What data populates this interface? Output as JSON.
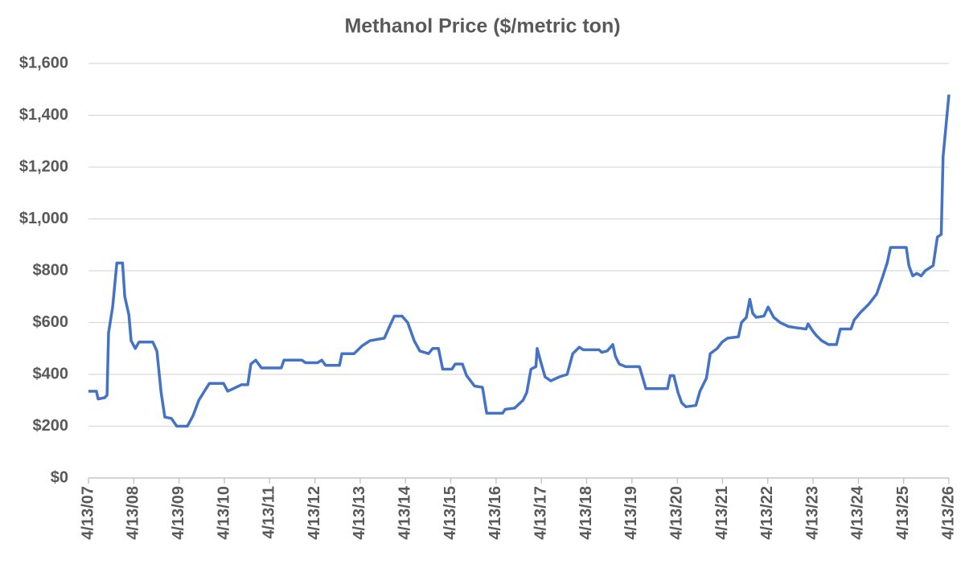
{
  "chart_data": {
    "type": "line",
    "title": "Methanol Price ($/metric ton)",
    "x": [
      "2007-04-13",
      "2007-06-16",
      "2007-06-30",
      "2007-08-22",
      "2007-09-10",
      "2007-09-22",
      "2007-10-25",
      "2007-11-28",
      "2008-01-13",
      "2008-01-31",
      "2008-03-04",
      "2008-03-22",
      "2008-04-25",
      "2008-05-25",
      "2008-09-13",
      "2008-10-16",
      "2008-11-19",
      "2008-12-19",
      "2009-02-10",
      "2009-03-25",
      "2009-06-19",
      "2009-08-03",
      "2009-09-19",
      "2009-11-10",
      "2009-12-13",
      "2010-04-07",
      "2010-05-10",
      "2010-06-25",
      "2010-08-28",
      "2010-10-19",
      "2010-11-13",
      "2010-12-22",
      "2011-02-06",
      "2011-07-16",
      "2011-08-07",
      "2011-12-28",
      "2012-01-28",
      "2012-05-04",
      "2012-06-07",
      "2012-07-07",
      "2012-10-28",
      "2012-11-16",
      "2013-02-22",
      "2013-04-28",
      "2013-07-01",
      "2013-10-25",
      "2013-12-10",
      "2014-01-13",
      "2014-03-16",
      "2014-05-01",
      "2014-06-22",
      "2014-08-07",
      "2014-10-16",
      "2014-11-19",
      "2015-01-04",
      "2015-02-07",
      "2015-04-22",
      "2015-05-19",
      "2015-07-16",
      "2015-08-19",
      "2015-10-22",
      "2015-12-25",
      "2016-01-28",
      "2016-06-04",
      "2016-06-25",
      "2016-09-10",
      "2016-11-16",
      "2016-12-16",
      "2017-01-19",
      "2017-02-28",
      "2017-03-10",
      "2017-04-07",
      "2017-05-13",
      "2017-06-28",
      "2017-09-03",
      "2017-11-07",
      "2017-12-22",
      "2018-02-13",
      "2018-03-16",
      "2018-07-22",
      "2018-08-13",
      "2018-09-25",
      "2018-11-10",
      "2018-12-01",
      "2019-01-01",
      "2019-02-22",
      "2019-06-13",
      "2019-08-04",
      "2020-01-25",
      "2020-02-16",
      "2020-03-16",
      "2020-04-19",
      "2020-05-19",
      "2020-06-22",
      "2020-09-10",
      "2020-10-13",
      "2020-12-04",
      "2021-01-04",
      "2021-03-01",
      "2021-04-10",
      "2021-05-25",
      "2021-08-19",
      "2021-09-13",
      "2021-10-22",
      "2021-11-19",
      "2021-12-13",
      "2022-01-10",
      "2022-03-13",
      "2022-04-16",
      "2022-05-31",
      "2022-07-22",
      "2022-09-25",
      "2022-11-28",
      "2023-02-16",
      "2023-03-04",
      "2023-04-07",
      "2023-05-10",
      "2023-06-22",
      "2023-08-16",
      "2023-10-19",
      "2023-11-19",
      "2024-02-13",
      "2024-03-10",
      "2024-05-01",
      "2024-07-04",
      "2024-09-07",
      "2024-10-28",
      "2024-12-01",
      "2024-12-28",
      "2025-05-04",
      "2025-05-25",
      "2025-06-25",
      "2025-07-28",
      "2025-09-01",
      "2025-10-04",
      "2025-12-07",
      "2026-01-10",
      "2026-02-10",
      "2026-02-25",
      "2026-04-13"
    ],
    "series": [
      {
        "color": "#4472c4",
        "values": [
          335,
          335,
          305,
          310,
          320,
          560,
          660,
          830,
          830,
          700,
          630,
          530,
          500,
          525,
          525,
          490,
          330,
          235,
          230,
          200,
          200,
          240,
          300,
          340,
          365,
          365,
          335,
          345,
          360,
          360,
          440,
          455,
          425,
          425,
          455,
          455,
          445,
          445,
          455,
          435,
          435,
          480,
          480,
          510,
          530,
          540,
          590,
          625,
          625,
          600,
          530,
          490,
          480,
          500,
          500,
          420,
          420,
          440,
          440,
          395,
          355,
          350,
          250,
          250,
          265,
          270,
          300,
          330,
          420,
          430,
          500,
          450,
          390,
          375,
          390,
          400,
          480,
          505,
          495,
          495,
          485,
          490,
          515,
          470,
          440,
          430,
          430,
          345,
          345,
          395,
          395,
          330,
          290,
          275,
          280,
          335,
          385,
          480,
          500,
          525,
          540,
          545,
          600,
          620,
          690,
          635,
          620,
          625,
          660,
          620,
          600,
          585,
          580,
          575,
          595,
          570,
          550,
          530,
          515,
          515,
          575,
          575,
          610,
          640,
          670,
          710,
          780,
          830,
          890,
          890,
          820,
          780,
          790,
          780,
          800,
          820,
          930,
          940,
          1240,
          1480
        ]
      }
    ],
    "xlim": [
      "2007-04-13",
      "2026-04-13"
    ],
    "xticks": [
      {
        "value": "2007-04-13",
        "label": "4/13/07"
      },
      {
        "value": "2008-04-13",
        "label": "4/13/08"
      },
      {
        "value": "2009-04-13",
        "label": "4/13/09"
      },
      {
        "value": "2010-04-13",
        "label": "4/13/10"
      },
      {
        "value": "2011-04-13",
        "label": "4/13/11"
      },
      {
        "value": "2012-04-13",
        "label": "4/13/12"
      },
      {
        "value": "2013-04-13",
        "label": "4/13/13"
      },
      {
        "value": "2014-04-13",
        "label": "4/13/14"
      },
      {
        "value": "2015-04-13",
        "label": "4/13/15"
      },
      {
        "value": "2016-04-13",
        "label": "4/13/16"
      },
      {
        "value": "2017-04-13",
        "label": "4/13/17"
      },
      {
        "value": "2018-04-13",
        "label": "4/13/18"
      },
      {
        "value": "2019-04-13",
        "label": "4/13/19"
      },
      {
        "value": "2020-04-13",
        "label": "4/13/20"
      },
      {
        "value": "2021-04-13",
        "label": "4/13/21"
      },
      {
        "value": "2022-04-13",
        "label": "4/13/22"
      },
      {
        "value": "2023-04-13",
        "label": "4/13/23"
      },
      {
        "value": "2024-04-13",
        "label": "4/13/24"
      },
      {
        "value": "2025-04-13",
        "label": "4/13/25"
      },
      {
        "value": "2026-04-13",
        "label": "4/13/26"
      }
    ],
    "ylim": [
      0,
      1600
    ],
    "yticks": [
      {
        "value": 0,
        "label": "$0"
      },
      {
        "value": 200,
        "label": "$200"
      },
      {
        "value": 400,
        "label": "$400"
      },
      {
        "value": 600,
        "label": "$600"
      },
      {
        "value": 800,
        "label": "$800"
      },
      {
        "value": 1000,
        "label": "$1,000"
      },
      {
        "value": 1200,
        "label": "$1,200"
      },
      {
        "value": 1400,
        "label": "$1,400"
      },
      {
        "value": 1600,
        "label": "$1,600"
      }
    ],
    "grid": true
  }
}
